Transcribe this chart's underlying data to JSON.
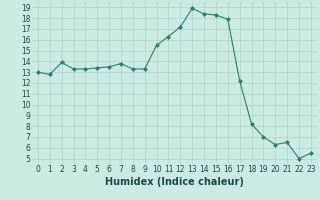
{
  "x": [
    0,
    1,
    2,
    3,
    4,
    5,
    6,
    7,
    8,
    9,
    10,
    11,
    12,
    13,
    14,
    15,
    16,
    17,
    18,
    19,
    20,
    21,
    22,
    23
  ],
  "y": [
    13.0,
    12.8,
    13.9,
    13.3,
    13.3,
    13.4,
    13.5,
    13.8,
    13.3,
    13.3,
    15.5,
    16.3,
    17.2,
    18.9,
    18.4,
    18.3,
    17.9,
    12.2,
    8.2,
    7.0,
    6.3,
    6.5,
    5.0,
    5.5
  ],
  "line_color": "#2d7d6e",
  "marker": "D",
  "marker_size": 2,
  "bg_color": "#cceae4",
  "grid_color": "#aed4cc",
  "xlabel": "Humidex (Indice chaleur)",
  "ylabel": "",
  "xlim": [
    -0.5,
    23.5
  ],
  "ylim": [
    4.5,
    19.5
  ],
  "yticks": [
    5,
    6,
    7,
    8,
    9,
    10,
    11,
    12,
    13,
    14,
    15,
    16,
    17,
    18,
    19
  ],
  "xticks": [
    0,
    1,
    2,
    3,
    4,
    5,
    6,
    7,
    8,
    9,
    10,
    11,
    12,
    13,
    14,
    15,
    16,
    17,
    18,
    19,
    20,
    21,
    22,
    23
  ],
  "tick_label_fontsize": 5.5,
  "xlabel_fontsize": 7,
  "label_color": "#1a4a42"
}
